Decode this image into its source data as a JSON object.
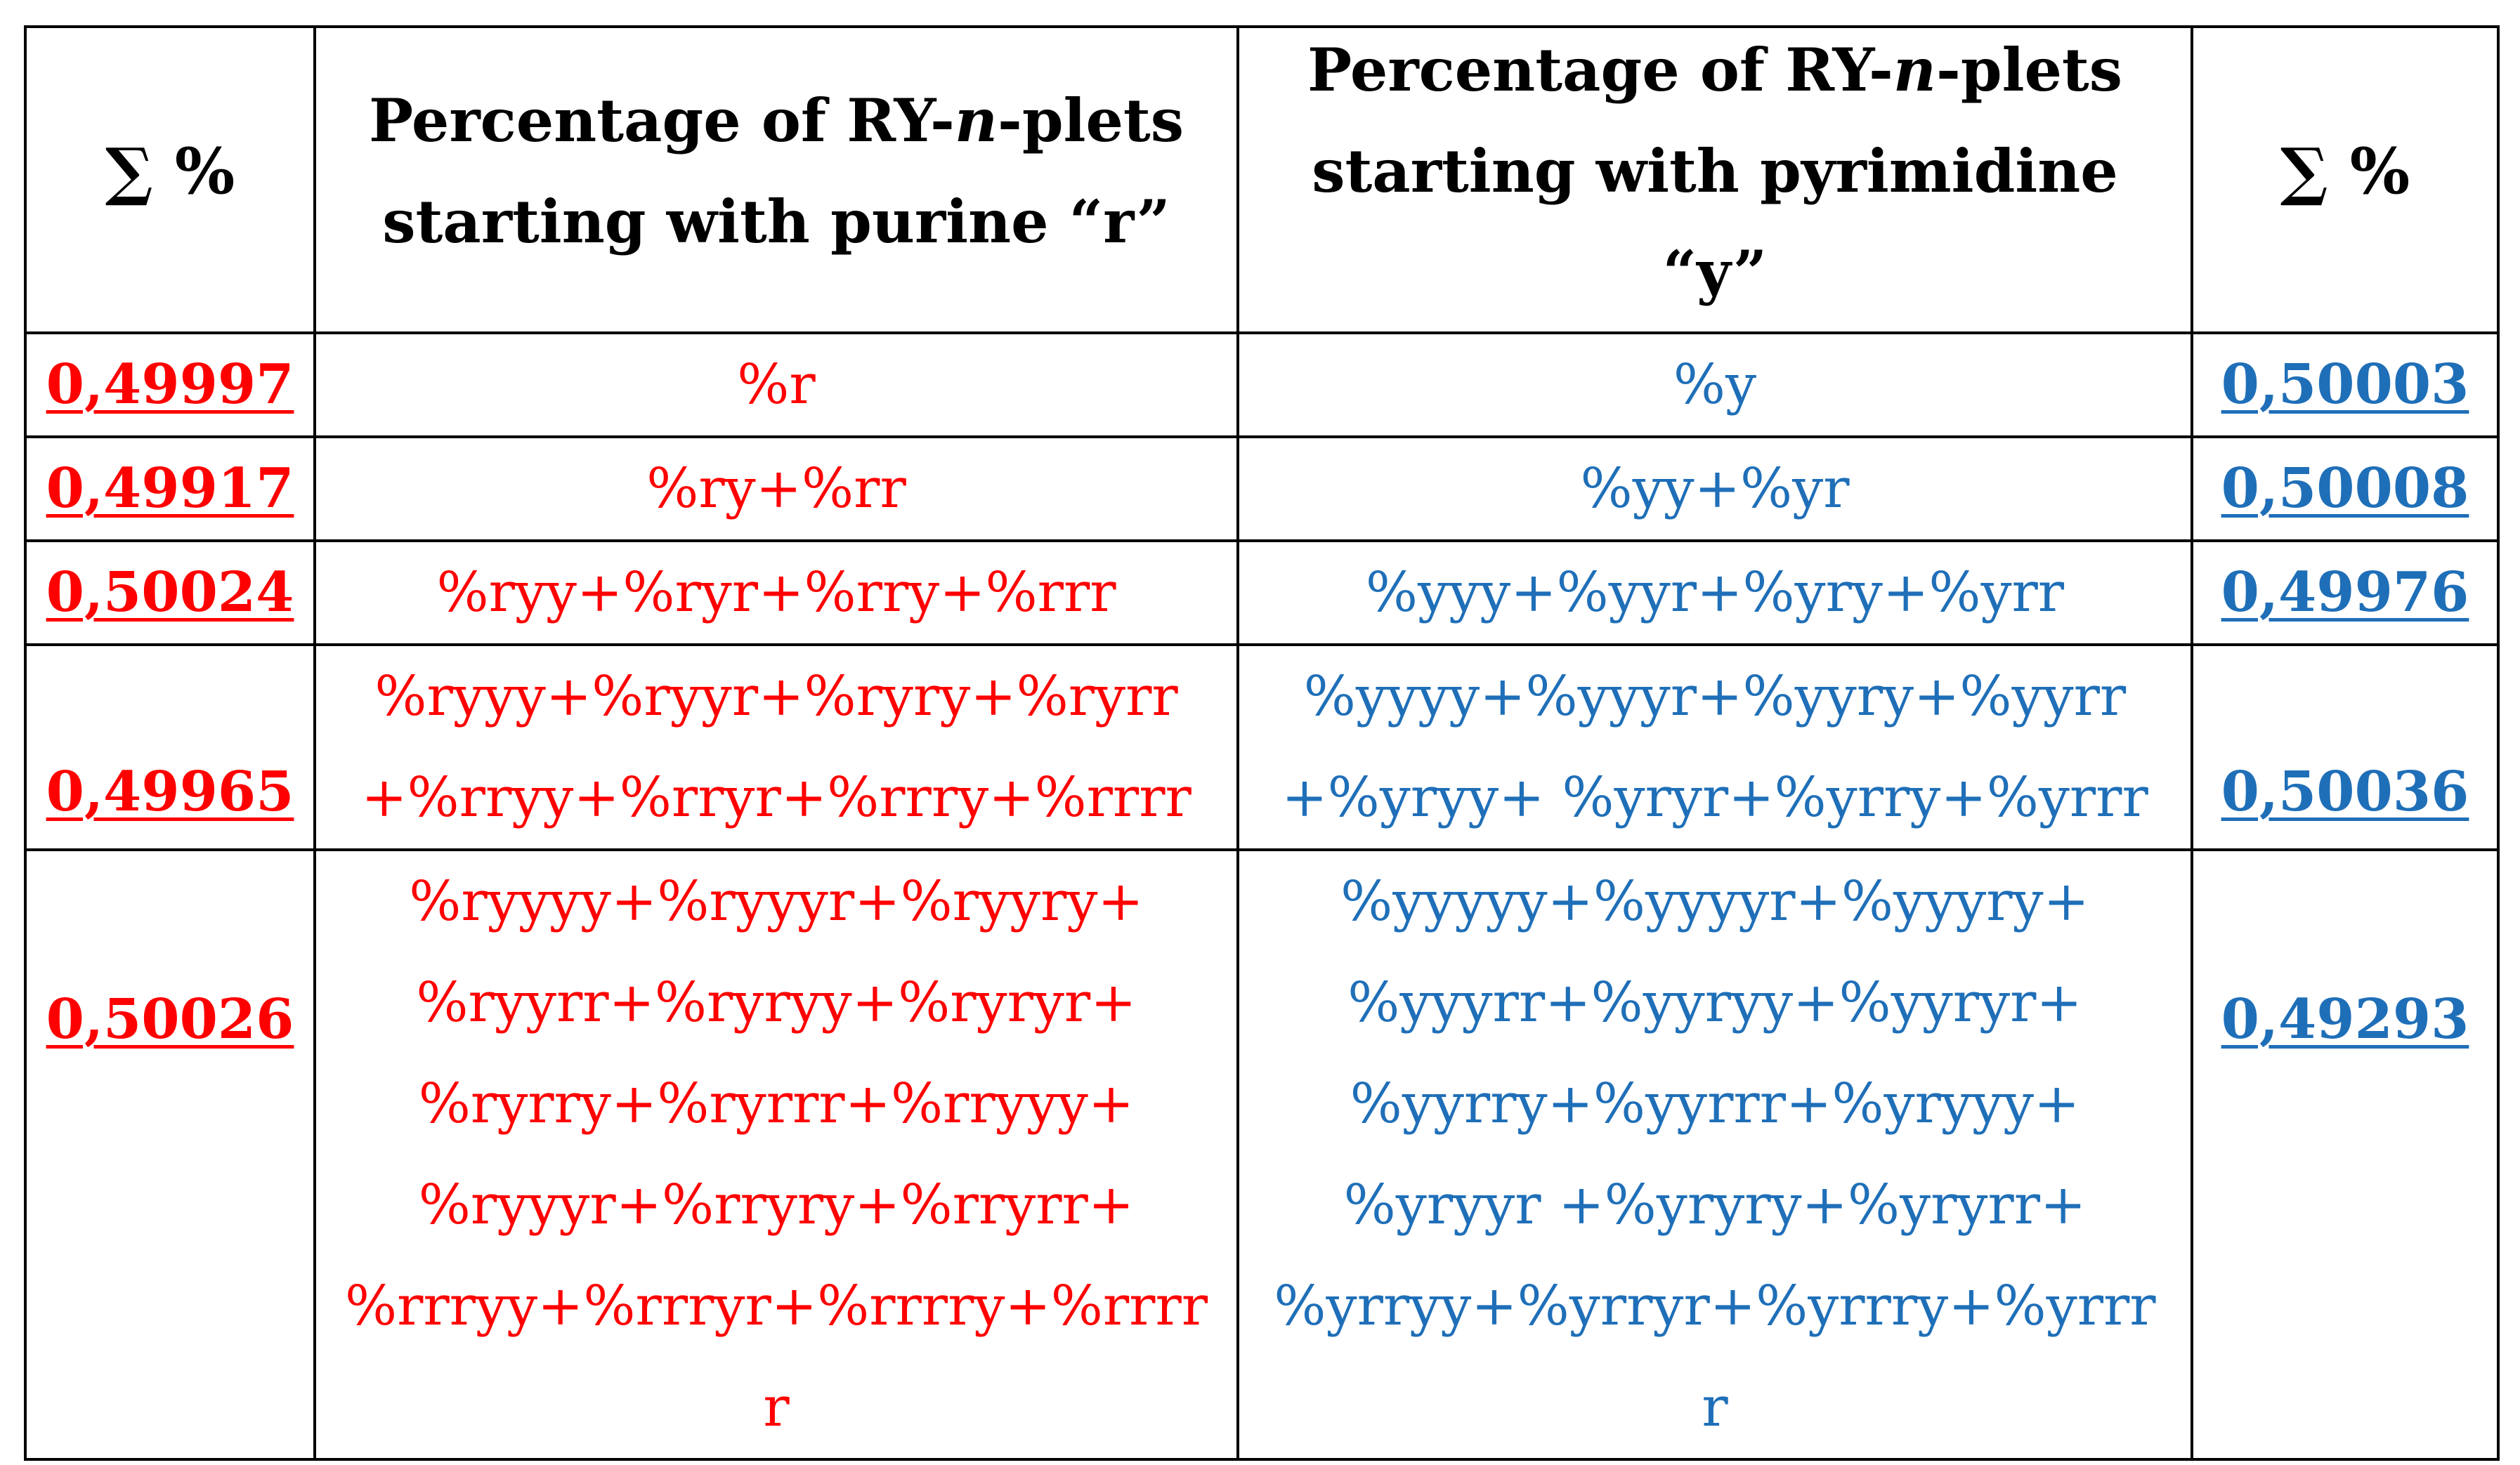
{
  "header": {
    "left_sum": "∑ %",
    "purine_line1_a": "Percentage of RY-",
    "purine_line1_n": "n",
    "purine_line1_b": "-plets",
    "purine_line2": "starting with purine “r”",
    "pyrimidine_line1_a": "Percentage of RY-",
    "pyrimidine_line1_n": "n",
    "pyrimidine_line1_b": "-plets",
    "pyrimidine_line2": "starting with pyrimidine",
    "pyrimidine_line3": "“y”",
    "right_sum": "∑ %"
  },
  "rows": [
    {
      "sum_r": "0,49997",
      "r_lines": [
        "%r"
      ],
      "y_lines": [
        "%y"
      ],
      "sum_y": "0,50003"
    },
    {
      "sum_r": "0,49917",
      "r_lines": [
        "%ry+%rr"
      ],
      "y_lines": [
        "%yy+%yr"
      ],
      "sum_y": "0,50008"
    },
    {
      "sum_r": "0,50024",
      "r_lines": [
        "%ryy+%ryr+%rry+%rrr"
      ],
      "y_lines": [
        "%yyy+%yyr+%yry+%yrr"
      ],
      "sum_y": "0,49976"
    },
    {
      "sum_r": "0,49965",
      "r_lines": [
        "%ryyy+%ryyr+%ryry+%ryrr",
        "+%rryy+%rryr+%rrry+%rrrr"
      ],
      "y_lines": [
        "%yyyy+%yyyr+%yyry+%yyrr",
        "+%yryy+ %yryr+%yrry+%yrrr"
      ],
      "sum_y": "0,50036"
    },
    {
      "sum_r": "0,50026",
      "r_lines": [
        "%ryyyy+%ryyyr+%ryyry+",
        "%ryyrr+%ryryy+%ryryr+",
        "%ryrry+%ryrrr+%rryyy+",
        "%ryyyr+%rryry+%rryrr+",
        "%rrryy+%rrryr+%rrrry+%rrrr",
        "r"
      ],
      "y_lines": [
        "%yyyyy+%yyyyr+%yyyry+",
        "%yyyrr+%yyryy+%yyryr+",
        "%yyrry+%yyrrr+%yryyy+",
        "%yryyr +%yryry+%yryrr+",
        "%yrryy+%yrryr+%yrrry+%yrrr",
        "r"
      ],
      "sum_y": "0,49293"
    }
  ],
  "colors": {
    "purine": "#ff0000",
    "pyrimidine": "#1f6fb8",
    "border": "#000000"
  }
}
